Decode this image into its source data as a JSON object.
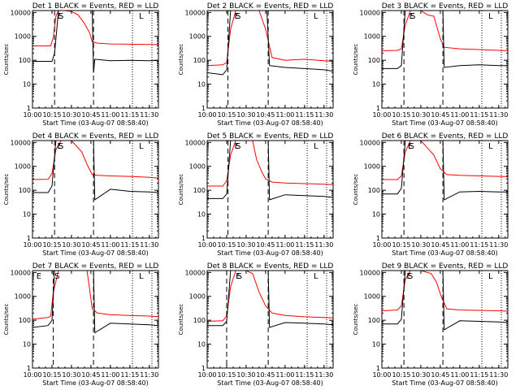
{
  "chart_data": [
    {
      "type": "line",
      "title": "Det  1  BLACK = Events, RED = LLD",
      "xlabel": "Start Time (03-Aug-07 08:58:40)",
      "ylabel": "Counts/sec",
      "x_ticks": [
        "10:00",
        "10:15",
        "10:30",
        "10:45",
        "11:00",
        "11:15",
        "11:30"
      ],
      "y_ticks": [
        "1",
        "10",
        "100",
        "1000",
        "10000"
      ],
      "y_scale": "log",
      "xlim": [
        "10:00",
        "11:37"
      ],
      "ylim": [
        1,
        12000
      ],
      "markers": {
        "dashed": [
          "10:17",
          "10:47"
        ],
        "dotted": [
          "11:17",
          "11:32"
        ],
        "letters": [
          [
            "S",
            "10:20"
          ],
          [
            "E",
            "10:19"
          ],
          [
            "L",
            "11:22"
          ]
        ]
      },
      "series": [
        {
          "color": "#ff0000",
          "x": [
            "10:00",
            "10:14",
            "10:16",
            "10:18",
            "10:20",
            "10:25",
            "10:30",
            "10:35",
            "10:40",
            "10:44",
            "10:46",
            "10:50",
            "11:00",
            "11:15",
            "11:30",
            "11:37"
          ],
          "values": [
            400,
            400,
            900,
            7000,
            12000,
            12000,
            11000,
            8000,
            3500,
            1400,
            600,
            520,
            480,
            470,
            460,
            450
          ]
        },
        {
          "color": "#000000",
          "x": [
            "10:00",
            "10:15",
            "10:17",
            "10:20",
            "10:30",
            "10:40",
            "10:46",
            "10:47",
            "10:48",
            "11:00",
            "11:15",
            "11:30",
            "11:37"
          ],
          "values": [
            90,
            90,
            200,
            12000,
            12000,
            12000,
            12000,
            30,
            110,
            95,
            100,
            95,
            100
          ]
        }
      ]
    },
    {
      "type": "line",
      "title": "Det  2  BLACK = Events, RED = LLD",
      "xlabel": "Start Time (03-Aug-07 08:58:40)",
      "ylabel": "Counts/sec",
      "x_ticks": [
        "10:00",
        "10:15",
        "10:30",
        "10:45",
        "11:00",
        "11:15",
        "11:30"
      ],
      "y_ticks": [
        "1",
        "10",
        "100",
        "1000",
        "10000"
      ],
      "y_scale": "log",
      "xlim": [
        "10:00",
        "11:37"
      ],
      "ylim": [
        1,
        12000
      ],
      "markers": {
        "dashed": [
          "10:16",
          "10:47"
        ],
        "dotted": [
          "11:17",
          "11:32"
        ],
        "letters": [
          [
            "S",
            "10:22"
          ],
          [
            "E",
            "10:21"
          ],
          [
            "L",
            "11:22"
          ]
        ]
      },
      "series": [
        {
          "color": "#ff0000",
          "x": [
            "10:00",
            "10:12",
            "10:15",
            "10:18",
            "10:22",
            "10:30",
            "10:35",
            "10:40",
            "10:45",
            "10:50",
            "11:00",
            "11:15",
            "11:30",
            "11:37"
          ],
          "values": [
            60,
            65,
            80,
            2000,
            12000,
            12000,
            12000,
            12000,
            2000,
            130,
            100,
            110,
            95,
            90
          ]
        },
        {
          "color": "#000000",
          "x": [
            "10:00",
            "10:12",
            "10:15",
            "10:18",
            "10:30",
            "10:45",
            "10:46",
            "10:48",
            "11:00",
            "11:15",
            "11:30",
            "11:37"
          ],
          "values": [
            30,
            25,
            40,
            12000,
            12000,
            12000,
            12000,
            60,
            50,
            45,
            40,
            35
          ]
        }
      ]
    },
    {
      "type": "line",
      "title": "Det  3  BLACK = Events, RED = LLD",
      "xlabel": "Start Time (03-Aug-07 08:58:40)",
      "ylabel": "Counts/sec",
      "x_ticks": [
        "10:00",
        "10:15",
        "10:30",
        "10:45",
        "11:00",
        "11:15",
        "11:30"
      ],
      "y_ticks": [
        "1",
        "10",
        "100",
        "1000",
        "10000"
      ],
      "y_scale": "log",
      "xlim": [
        "10:00",
        "11:37"
      ],
      "ylim": [
        1,
        12000
      ],
      "markers": {
        "dashed": [
          "10:17",
          "10:47"
        ],
        "dotted": [
          "11:17",
          "11:32"
        ],
        "letters": [
          [
            "S",
            "10:22"
          ],
          [
            "E",
            "10:21"
          ],
          [
            "L",
            "11:22"
          ]
        ]
      },
      "series": [
        {
          "color": "#ff0000",
          "x": [
            "10:00",
            "10:12",
            "10:15",
            "10:18",
            "10:22",
            "10:30",
            "10:35",
            "10:40",
            "10:45",
            "10:48",
            "11:00",
            "11:15",
            "11:30",
            "11:37"
          ],
          "values": [
            250,
            260,
            300,
            3000,
            12000,
            12000,
            8000,
            7000,
            800,
            350,
            300,
            280,
            260,
            250
          ]
        },
        {
          "color": "#000000",
          "x": [
            "10:00",
            "10:12",
            "10:15",
            "10:18",
            "10:30",
            "10:46",
            "10:47",
            "10:48",
            "11:00",
            "11:15",
            "11:30",
            "11:37"
          ],
          "values": [
            45,
            45,
            60,
            12000,
            12000,
            12000,
            12000,
            50,
            60,
            65,
            60,
            60
          ]
        }
      ]
    },
    {
      "type": "line",
      "title": "Det  4  BLACK = Events, RED = LLD",
      "xlabel": "Start Time (03-Aug-07 08:58:40)",
      "ylabel": "Counts/sec",
      "x_ticks": [
        "10:00",
        "10:15",
        "10:30",
        "10:45",
        "11:00",
        "11:15",
        "11:30"
      ],
      "y_ticks": [
        "1",
        "10",
        "100",
        "1000",
        "10000"
      ],
      "y_scale": "log",
      "xlim": [
        "10:00",
        "11:37"
      ],
      "ylim": [
        1,
        12000
      ],
      "markers": {
        "dashed": [
          "10:17",
          "10:47"
        ],
        "dotted": [
          "11:17",
          "11:32"
        ],
        "letters": [
          [
            "S",
            "10:20"
          ],
          [
            "E",
            "10:19"
          ],
          [
            "L",
            "11:22"
          ]
        ]
      },
      "series": [
        {
          "color": "#ff0000",
          "x": [
            "10:00",
            "10:12",
            "10:15",
            "10:18",
            "10:22",
            "10:30",
            "10:38",
            "10:42",
            "10:46",
            "10:50",
            "11:00",
            "11:15",
            "11:30",
            "11:37"
          ],
          "values": [
            280,
            290,
            500,
            5000,
            12000,
            12000,
            4000,
            1200,
            450,
            420,
            400,
            380,
            350,
            320
          ]
        },
        {
          "color": "#000000",
          "x": [
            "10:00",
            "10:12",
            "10:15",
            "10:18",
            "10:30",
            "10:46",
            "10:47",
            "10:48",
            "11:00",
            "11:15",
            "11:30",
            "11:37"
          ],
          "values": [
            80,
            80,
            150,
            12000,
            12000,
            12000,
            12000,
            40,
            110,
            90,
            85,
            80
          ]
        }
      ]
    },
    {
      "type": "line",
      "title": "Det  5  BLACK = Events, RED = LLD",
      "xlabel": "Start Time (03-Aug-07 08:58:40)",
      "ylabel": "Counts/sec",
      "x_ticks": [
        "10:00",
        "10:15",
        "10:30",
        "10:45",
        "11:00",
        "11:15",
        "11:30"
      ],
      "y_ticks": [
        "1",
        "10",
        "100",
        "1000",
        "10000"
      ],
      "y_scale": "log",
      "xlim": [
        "10:00",
        "11:37"
      ],
      "ylim": [
        1,
        12000
      ],
      "markers": {
        "dashed": [
          "10:16",
          "10:47"
        ],
        "dotted": [
          "11:17",
          "11:32"
        ],
        "letters": [
          [
            "S",
            "10:22"
          ],
          [
            "E",
            "10:21"
          ],
          [
            "L",
            "11:22"
          ]
        ]
      },
      "series": [
        {
          "color": "#ff0000",
          "x": [
            "10:00",
            "10:12",
            "10:15",
            "10:18",
            "10:22",
            "10:30",
            "10:35",
            "10:38",
            "10:42",
            "10:45",
            "10:50",
            "11:00",
            "11:15",
            "11:30",
            "11:37"
          ],
          "values": [
            150,
            150,
            250,
            3000,
            12000,
            12000,
            12000,
            2000,
            600,
            300,
            220,
            200,
            190,
            180,
            170
          ]
        },
        {
          "color": "#000000",
          "x": [
            "10:00",
            "10:12",
            "10:15",
            "10:18",
            "10:30",
            "10:46",
            "10:47",
            "10:48",
            "11:00",
            "11:15",
            "11:30",
            "11:37"
          ],
          "values": [
            45,
            45,
            70,
            12000,
            12000,
            12000,
            12000,
            40,
            65,
            60,
            55,
            50
          ]
        }
      ]
    },
    {
      "type": "line",
      "title": "Det  6  BLACK = Events, RED = LLD",
      "xlabel": "Start Time (03-Aug-07 08:58:40)",
      "ylabel": "Counts/sec",
      "x_ticks": [
        "10:00",
        "10:15",
        "10:30",
        "10:45",
        "11:00",
        "11:15",
        "11:30"
      ],
      "y_ticks": [
        "1",
        "10",
        "100",
        "1000",
        "10000"
      ],
      "y_scale": "log",
      "xlim": [
        "10:00",
        "11:37"
      ],
      "ylim": [
        1,
        12000
      ],
      "markers": {
        "dashed": [
          "10:17",
          "10:47"
        ],
        "dotted": [
          "11:17",
          "11:32"
        ],
        "letters": [
          [
            "S",
            "10:21"
          ],
          [
            "E",
            "10:20"
          ],
          [
            "L",
            "11:22"
          ]
        ]
      },
      "series": [
        {
          "color": "#ff0000",
          "x": [
            "10:00",
            "10:12",
            "10:15",
            "10:18",
            "10:22",
            "10:30",
            "10:35",
            "10:40",
            "10:45",
            "10:50",
            "11:00",
            "11:15",
            "11:30",
            "11:37"
          ],
          "values": [
            280,
            280,
            400,
            4000,
            12000,
            12000,
            6000,
            3000,
            800,
            450,
            420,
            400,
            380,
            370
          ]
        },
        {
          "color": "#000000",
          "x": [
            "10:00",
            "10:12",
            "10:15",
            "10:18",
            "10:30",
            "10:46",
            "10:47",
            "10:48",
            "11:00",
            "11:15",
            "11:30",
            "11:37"
          ],
          "values": [
            70,
            70,
            120,
            12000,
            12000,
            12000,
            12000,
            40,
            85,
            90,
            85,
            85
          ]
        }
      ]
    },
    {
      "type": "line",
      "title": "Det  7  BLACK = Events, RED = LLD",
      "xlabel": "Start Time (03-Aug-07 08:58:40)",
      "ylabel": "Counts/sec",
      "x_ticks": [
        "10:00",
        "10:15",
        "10:30",
        "10:45",
        "11:00",
        "11:15",
        "11:30"
      ],
      "y_ticks": [
        "1",
        "10",
        "100",
        "1000",
        "10000"
      ],
      "y_scale": "log",
      "xlim": [
        "10:00",
        "11:37"
      ],
      "ylim": [
        1,
        12000
      ],
      "markers": {
        "dashed": [
          "10:16",
          "10:47"
        ],
        "dotted": [
          "11:17",
          "11:32"
        ],
        "letters": [
          [
            "S",
            "10:17"
          ],
          [
            "E",
            "10:03"
          ],
          [
            "L",
            "11:22"
          ]
        ]
      },
      "series": [
        {
          "color": "#ff0000",
          "x": [
            "10:00",
            "10:12",
            "10:14",
            "10:16",
            "10:20",
            "10:30",
            "10:42",
            "10:44",
            "10:46",
            "10:50",
            "11:00",
            "11:15",
            "11:30",
            "11:37"
          ],
          "values": [
            110,
            130,
            150,
            1500,
            12000,
            12000,
            12000,
            2000,
            300,
            200,
            170,
            160,
            150,
            140
          ]
        },
        {
          "color": "#000000",
          "x": [
            "10:00",
            "10:12",
            "10:15",
            "10:17",
            "10:30",
            "10:46",
            "10:47",
            "10:48",
            "11:00",
            "11:15",
            "11:30",
            "11:37"
          ],
          "values": [
            50,
            60,
            100,
            12000,
            12000,
            12000,
            12000,
            30,
            75,
            70,
            65,
            60
          ]
        }
      ]
    },
    {
      "type": "line",
      "title": "Det  8  BLACK = Events, RED = LLD",
      "xlabel": "Start Time (03-Aug-07 08:58:40)",
      "ylabel": "Counts/sec",
      "x_ticks": [
        "10:00",
        "10:15",
        "10:30",
        "10:45",
        "11:00",
        "11:15",
        "11:30"
      ],
      "y_ticks": [
        "1",
        "10",
        "100",
        "1000",
        "10000"
      ],
      "y_scale": "log",
      "xlim": [
        "10:00",
        "11:37"
      ],
      "ylim": [
        1,
        12000
      ],
      "markers": {
        "dashed": [
          "10:15",
          "10:47"
        ],
        "dotted": [
          "11:17",
          "11:32"
        ],
        "letters": [
          [
            "S",
            "10:23"
          ],
          [
            "E",
            "10:22"
          ],
          [
            "L",
            "11:22"
          ]
        ]
      },
      "series": [
        {
          "color": "#ff0000",
          "x": [
            "10:00",
            "10:12",
            "10:15",
            "10:18",
            "10:22",
            "10:30",
            "10:35",
            "10:40",
            "10:45",
            "10:50",
            "11:00",
            "11:15",
            "11:30",
            "11:37"
          ],
          "values": [
            90,
            95,
            150,
            2500,
            12000,
            12000,
            9000,
            1500,
            400,
            200,
            160,
            140,
            130,
            125
          ]
        },
        {
          "color": "#000000",
          "x": [
            "10:00",
            "10:12",
            "10:15",
            "10:18",
            "10:30",
            "10:46",
            "10:47",
            "10:48",
            "11:00",
            "11:15",
            "11:30",
            "11:37"
          ],
          "values": [
            60,
            60,
            90,
            12000,
            12000,
            12000,
            12000,
            50,
            80,
            75,
            70,
            65
          ]
        }
      ]
    },
    {
      "type": "line",
      "title": "Det  9  BLACK = Events, RED = LLD",
      "xlabel": "Start Time (03-Aug-07 08:58:40)",
      "ylabel": "Counts/sec",
      "x_ticks": [
        "10:00",
        "10:15",
        "10:30",
        "10:45",
        "11:00",
        "11:15",
        "11:30"
      ],
      "y_ticks": [
        "1",
        "10",
        "100",
        "1000",
        "10000"
      ],
      "y_scale": "log",
      "xlim": [
        "10:00",
        "11:37"
      ],
      "ylim": [
        1,
        12000
      ],
      "markers": {
        "dashed": [
          "10:17",
          "10:47"
        ],
        "dotted": [
          "11:17",
          "11:32"
        ],
        "letters": [
          [
            "S",
            "10:20"
          ],
          [
            "E",
            "10:19"
          ],
          [
            "L",
            "11:22"
          ]
        ]
      },
      "series": [
        {
          "color": "#ff0000",
          "x": [
            "10:00",
            "10:12",
            "10:15",
            "10:18",
            "10:22",
            "10:30",
            "10:38",
            "10:42",
            "10:46",
            "10:50",
            "11:00",
            "11:15",
            "11:30",
            "11:37"
          ],
          "values": [
            250,
            270,
            400,
            5000,
            12000,
            12000,
            9000,
            4000,
            900,
            300,
            270,
            260,
            250,
            240
          ]
        },
        {
          "color": "#000000",
          "x": [
            "10:00",
            "10:12",
            "10:15",
            "10:18",
            "10:30",
            "10:46",
            "10:47",
            "10:48",
            "11:00",
            "11:15",
            "11:30",
            "11:37"
          ],
          "values": [
            70,
            70,
            110,
            12000,
            12000,
            12000,
            12000,
            40,
            95,
            90,
            85,
            80
          ]
        }
      ]
    }
  ]
}
